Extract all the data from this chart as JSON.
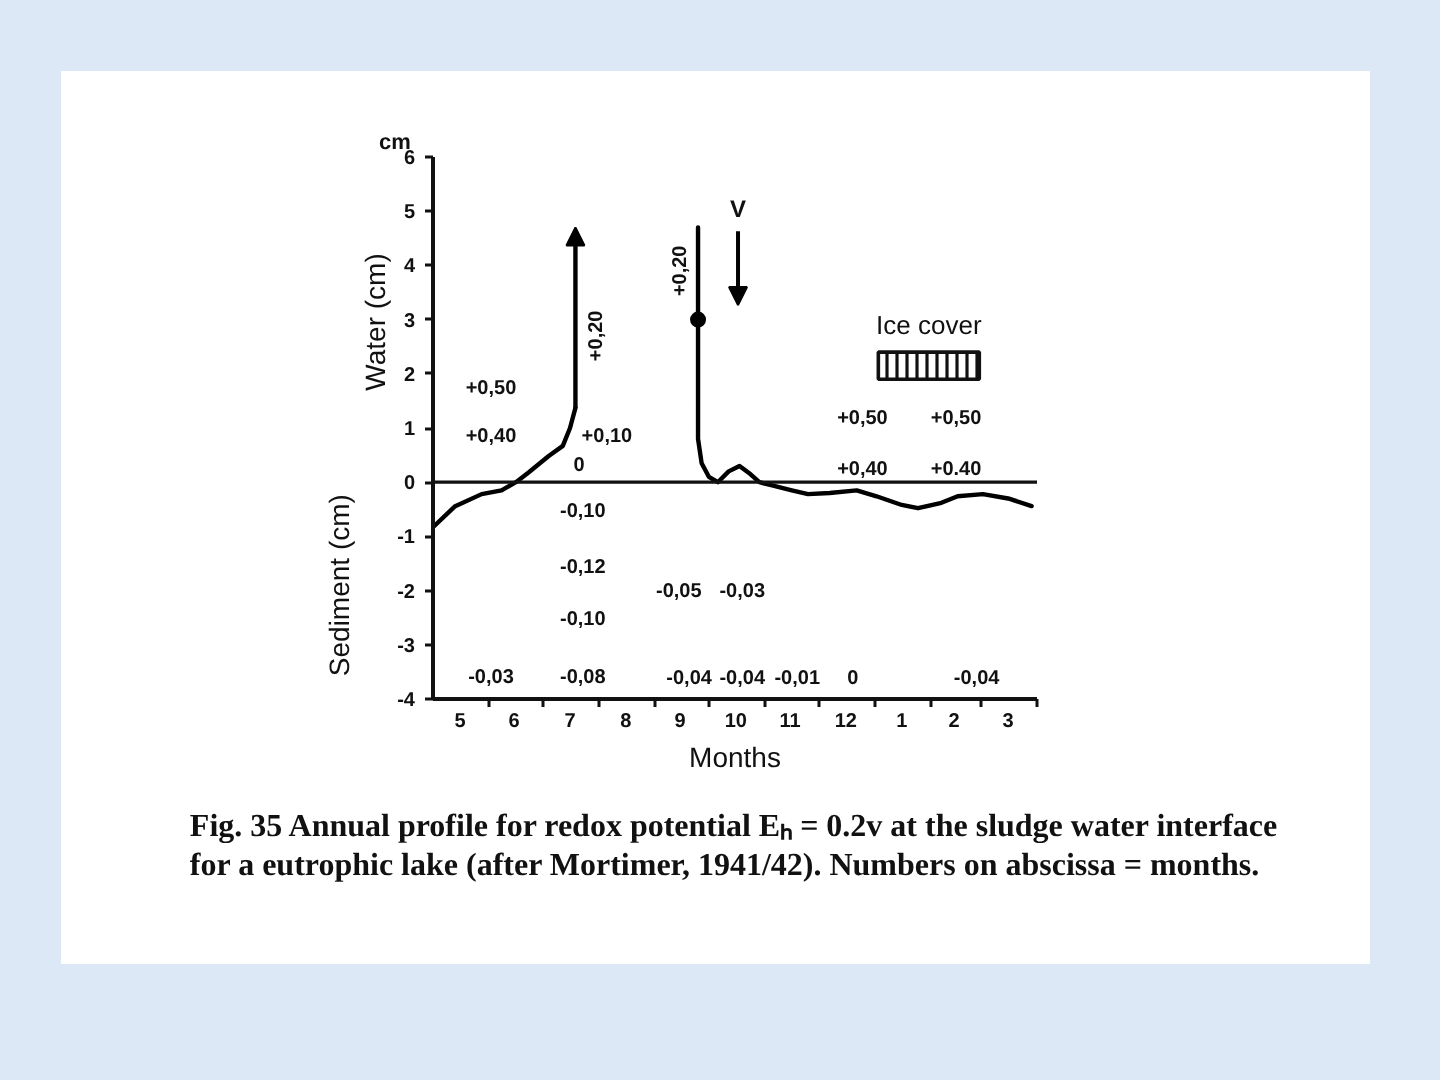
{
  "chart_data": {
    "type": "line",
    "xlabel": "Months",
    "ylabel": "cm",
    "xlim": [
      "1941-05-01",
      "1942-04-01"
    ],
    "ylim": [
      -4,
      6
    ],
    "xticks": [
      {
        "value": "1941-05-16",
        "label": "5"
      },
      {
        "value": "1941-06-15",
        "label": "6"
      },
      {
        "value": "1941-07-16",
        "label": "7"
      },
      {
        "value": "1941-08-16",
        "label": "8"
      },
      {
        "value": "1941-09-15",
        "label": "9"
      },
      {
        "value": "1941-10-16",
        "label": "10"
      },
      {
        "value": "1941-11-15",
        "label": "11"
      },
      {
        "value": "1941-12-16",
        "label": "12"
      },
      {
        "value": "1942-01-16",
        "label": "1"
      },
      {
        "value": "1942-02-14",
        "label": "2"
      },
      {
        "value": "1942-03-16",
        "label": "3"
      },
      {
        "value": "1941-06-01",
        "label": null
      },
      {
        "value": "1941-07-01",
        "label": null
      },
      {
        "value": "1941-08-01",
        "label": null
      },
      {
        "value": "1941-09-01",
        "label": null
      },
      {
        "value": "1941-10-01",
        "label": null
      },
      {
        "value": "1941-11-01",
        "label": null
      },
      {
        "value": "1941-12-01",
        "label": null
      },
      {
        "value": "1942-01-01",
        "label": null
      },
      {
        "value": "1942-02-01",
        "label": null
      },
      {
        "value": "1942-03-01",
        "label": null
      },
      {
        "value": "1942-04-01",
        "label": null
      }
    ],
    "yticks": [
      -4,
      -3,
      -2,
      -1,
      0,
      1,
      2,
      3,
      4,
      5,
      6
    ],
    "series": [
      {
        "color": "#000000",
        "x": [
          "1941-05-01",
          "1941-05-13",
          "1941-05-28",
          "1941-06-08",
          "1941-06-16",
          "1941-06-23",
          "1941-07-04",
          "1941-07-12",
          "1941-07-16",
          "1941-07-19",
          "1941-08-22",
          "1941-09-25",
          "1941-09-25",
          "1941-09-25",
          "1941-09-27",
          "1941-10-01",
          "1941-10-06",
          "1941-10-12",
          "1941-10-18",
          "1941-10-24",
          "1941-10-29",
          "1941-11-04",
          "1941-11-16",
          "1941-11-25",
          "1941-12-07",
          "1941-12-22",
          "1942-01-02",
          "1942-01-16",
          "1942-01-25",
          "1942-02-07",
          "1942-02-16",
          "1942-03-02",
          "1942-03-16",
          "1942-03-29"
        ],
        "values": [
          -0.83,
          -0.45,
          -0.22,
          -0.15,
          0.0,
          0.18,
          0.48,
          0.67,
          1.0,
          1.37,
          null,
          4.7,
          3.0,
          0.8,
          0.35,
          0.1,
          0.0,
          0.2,
          0.3,
          0.15,
          0.0,
          -0.05,
          -0.15,
          -0.22,
          -0.2,
          -0.15,
          -0.26,
          -0.42,
          -0.48,
          -0.38,
          -0.26,
          -0.22,
          -0.3,
          -0.44
        ]
      },
      {
        "type": "scatter",
        "marker": "circle",
        "color": "#000000",
        "x": [
          "1941-09-25"
        ],
        "values": [
          3.0
        ]
      }
    ],
    "ref_lines": [
      {
        "axis": "y",
        "value": 0
      }
    ],
    "bands": [
      {
        "axis": "x",
        "from": "1942-01-03",
        "to": "1942-02-28",
        "label": "Ice cover"
      }
    ],
    "annotations": [
      "+0,20",
      "+0,20",
      "+0,50",
      "+0,40",
      "+0,10",
      "0",
      "-0,10",
      "-0,12",
      "-0,10",
      "-0,03",
      "-0,08",
      "-0,05",
      "-0,03",
      "-0,04",
      "-0,04",
      "-0,01",
      "0",
      "-0,04",
      "+0,50",
      "+0,50",
      "+0,40",
      "+0.40",
      "V",
      "Water (cm)",
      "Sediment (cm)",
      "Fig. 35 Annual profile for redox potential Eₕ = 0.2v at the sludge water interface for a eutrophic lake (after Mortimer, 1941/42). Numbers on abscissa = months."
    ]
  }
}
